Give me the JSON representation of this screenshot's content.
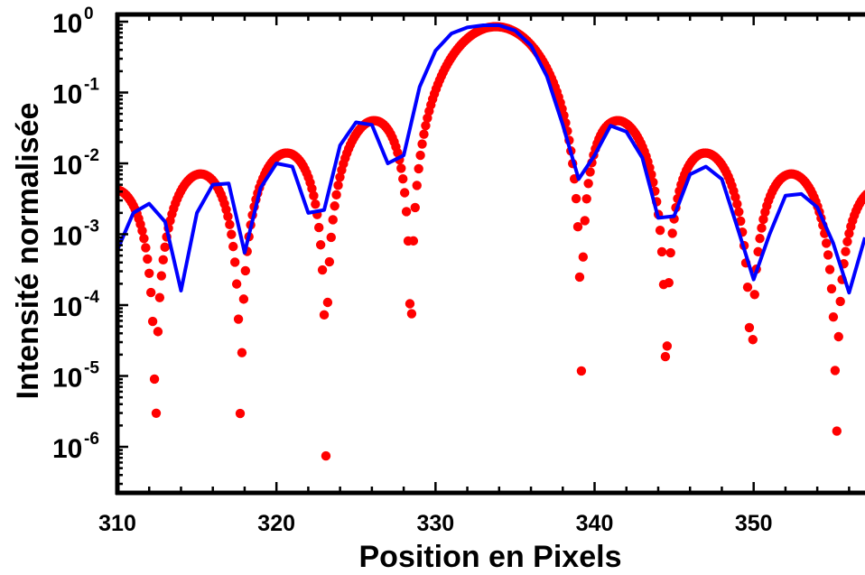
{
  "chart_data": {
    "type": "scatter",
    "xlabel": "Position en Pixels",
    "ylabel": "Intensité normalisée",
    "xlim": [
      310,
      357
    ],
    "ylim": [
      3e-07,
      1.4
    ],
    "yscale": "log",
    "grid": false,
    "x_ticks": [
      {
        "value": 310,
        "label": "310"
      },
      {
        "value": 320,
        "label": "320"
      },
      {
        "value": 330,
        "label": "330"
      },
      {
        "value": 340,
        "label": "340"
      },
      {
        "value": 350,
        "label": "350"
      }
    ],
    "y_ticks": [
      {
        "value": 1,
        "base": "10",
        "exp": "0"
      },
      {
        "value": 0.1,
        "base": "10",
        "exp": "-1"
      },
      {
        "value": 0.01,
        "base": "10",
        "exp": "-2"
      },
      {
        "value": 0.001,
        "base": "10",
        "exp": "-3"
      },
      {
        "value": 0.0001,
        "base": "10",
        "exp": "-4"
      },
      {
        "value": 1e-05,
        "base": "10",
        "exp": "-5"
      },
      {
        "value": 1e-06,
        "base": "10",
        "exp": "-6"
      }
    ],
    "colors": {
      "theory": "#ff0000",
      "measured": "#0000ff",
      "axis": "#000000"
    },
    "series": [
      {
        "style": "dotted-curve",
        "function": "sinc2",
        "center": 333.8,
        "period": 5.35,
        "peak": 0.85
      },
      {
        "style": "line",
        "x": [
          310,
          311,
          312,
          313,
          314,
          315,
          316,
          317,
          318,
          319,
          320,
          321,
          322,
          323,
          324,
          325,
          326,
          327,
          328,
          329,
          330,
          331,
          332,
          333,
          334,
          335,
          336,
          337,
          338,
          339,
          340,
          341,
          342,
          343,
          344,
          345,
          346,
          347,
          348,
          349,
          350,
          351,
          352,
          353,
          354,
          355,
          356,
          357
        ],
        "y": [
          0.0006,
          0.002,
          0.0027,
          0.0015,
          0.00016,
          0.002,
          0.005,
          0.0052,
          0.00055,
          0.0045,
          0.01,
          0.009,
          0.002,
          0.0022,
          0.018,
          0.038,
          0.035,
          0.01,
          0.013,
          0.12,
          0.39,
          0.68,
          0.83,
          0.89,
          0.89,
          0.75,
          0.46,
          0.17,
          0.035,
          0.006,
          0.013,
          0.034,
          0.028,
          0.012,
          0.0017,
          0.0018,
          0.007,
          0.009,
          0.006,
          0.0012,
          0.00023,
          0.001,
          0.0035,
          0.0037,
          0.0024,
          0.00075,
          0.00015,
          0.0009
        ]
      }
    ]
  }
}
